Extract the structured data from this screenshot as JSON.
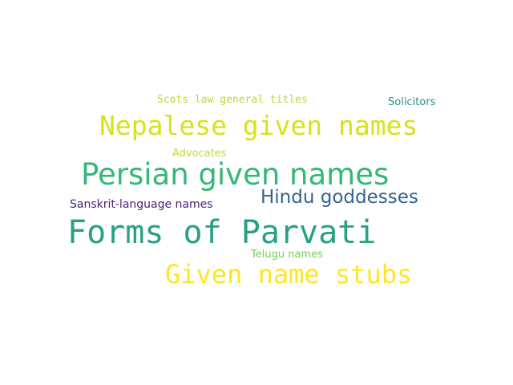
{
  "words": [
    {
      "text": "Scots law general titles",
      "color": "#b5de2b"
    },
    {
      "text": "Solicitors",
      "color": "#21918c"
    },
    {
      "text": "Nepalese given names",
      "color": "#d8e219"
    },
    {
      "text": "Advocates",
      "color": "#c2df23"
    },
    {
      "text": "Persian given names",
      "color": "#35b779"
    },
    {
      "text": "Hindu goddesses",
      "color": "#33638d"
    },
    {
      "text": "Sanskrit-language names",
      "color": "#482475"
    },
    {
      "text": "Forms of Parvati",
      "color": "#26a185"
    },
    {
      "text": "Telugu names",
      "color": "#73d056"
    },
    {
      "text": "Given name stubs",
      "color": "#fde725"
    }
  ]
}
